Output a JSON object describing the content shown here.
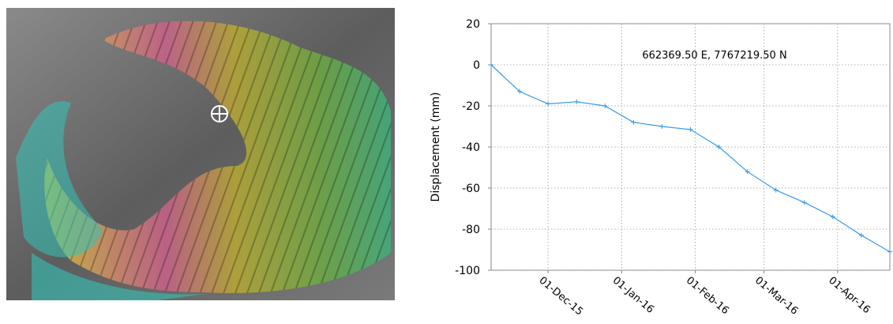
{
  "chart_data": {
    "type": "line",
    "annotation": "662369.50  E,   7767219.50  N",
    "y_label": "Displacement (mm)",
    "x": [
      "2015-11-07",
      "2015-11-19",
      "2015-12-01",
      "2015-12-13",
      "2015-12-25",
      "2016-01-06",
      "2016-01-18",
      "2016-01-30",
      "2016-02-11",
      "2016-02-23",
      "2016-03-06",
      "2016-03-18",
      "2016-03-30",
      "2016-04-11",
      "2016-04-23"
    ],
    "series": [
      {
        "color": "#3399ee",
        "values": [
          0,
          -13,
          -19,
          -18,
          -20,
          -28,
          -30,
          -31.5,
          -40,
          -52,
          -61,
          -67,
          -74,
          -83,
          -91
        ]
      }
    ],
    "xlim": [
      "2015-11-07",
      "2016-04-23"
    ],
    "xticks": [
      {
        "value": "2015-12-01",
        "label": "01-Dec-15"
      },
      {
        "value": "2016-01-01",
        "label": "01-Jan-16"
      },
      {
        "value": "2016-02-01",
        "label": "01-Feb-16"
      },
      {
        "value": "2016-03-01",
        "label": "01-Mar-16"
      },
      {
        "value": "2016-04-01",
        "label": "01-Apr-16"
      }
    ],
    "ylim": [
      -100,
      20
    ],
    "yticks": [
      -100,
      -80,
      -60,
      -40,
      -20,
      0,
      20
    ],
    "grid": true
  }
}
